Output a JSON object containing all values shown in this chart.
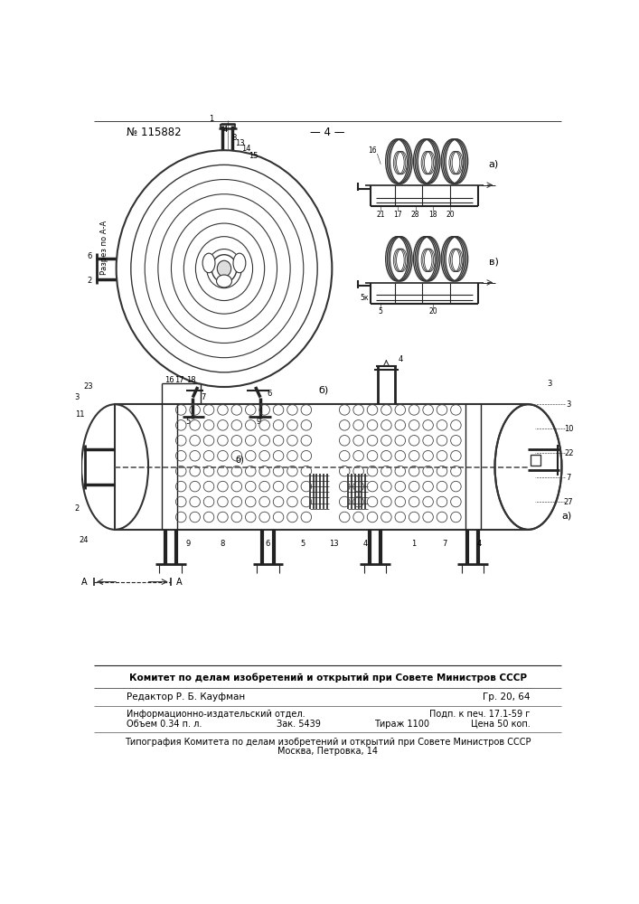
{
  "bg_color": "#ffffff",
  "patent_number": "№ 115882",
  "page_number": "— 4 —",
  "footer_line1": "Комитет по делам изобретений и открытий при Совете Министров СССР",
  "footer_line2": "Редактор Р. Б. Кауфман",
  "footer_line2_right": "Гр. 20, 64",
  "footer_line3_left": "Информационно-издательский отдел.",
  "footer_line3_right": "Подп. к печ. 17.1-59 г",
  "footer_line4_left": "Объем 0.34 п. л.",
  "footer_line4_mid": "Зак. 5439",
  "footer_line4_mid2": "Тираж 1100",
  "footer_line4_right": "Цена 50 коп.",
  "footer_line5": "Типография Комитета по делам изобретений и открытий при Совете Министров СССР",
  "footer_line6": "Москва, Петровка, 14"
}
